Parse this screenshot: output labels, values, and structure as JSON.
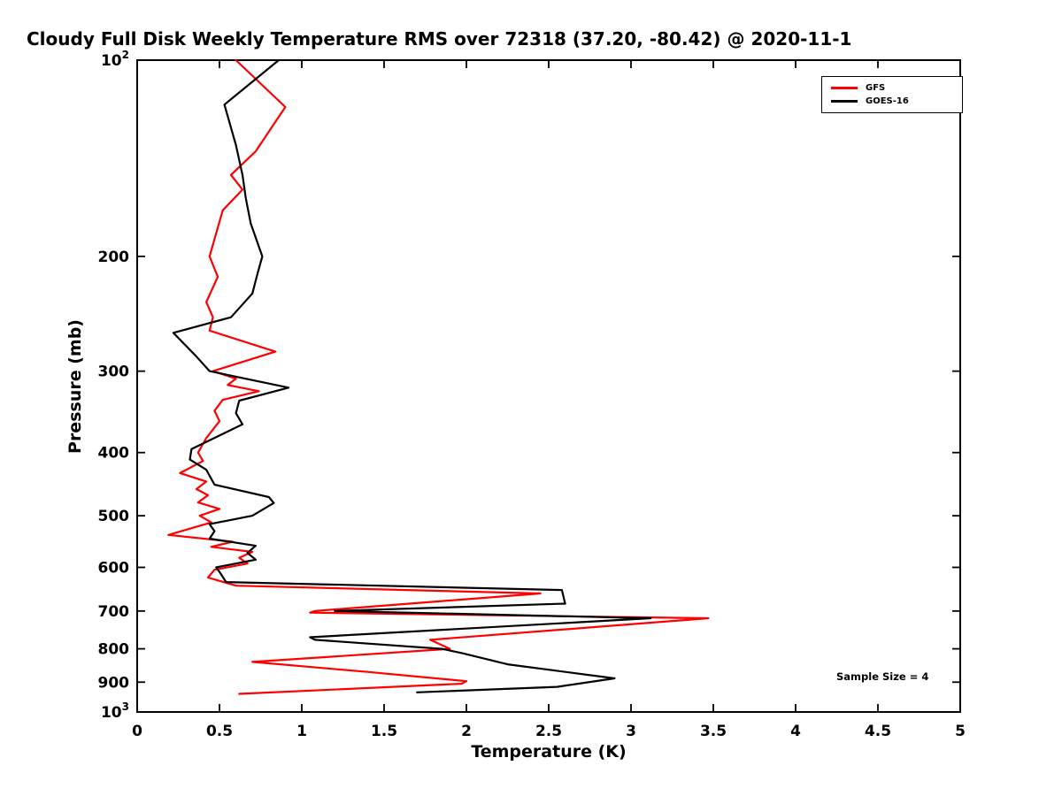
{
  "title": "Cloudy Full Disk Weekly Temperature RMS over 72318 (37.20, -80.42) @ 2020-11-1",
  "annotations": {
    "sample_size": "Sample Size = 4"
  },
  "chart_data": {
    "type": "line",
    "title": "Cloudy Full Disk Weekly Temperature RMS over 72318 (37.20, -80.42) @ 2020-11-1",
    "xlabel": "Temperature (K)",
    "ylabel": "Pressure (mb)",
    "xlim": [
      0,
      5
    ],
    "x_ticks": [
      {
        "value": 0,
        "label": "0"
      },
      {
        "value": 0.5,
        "label": "0.5"
      },
      {
        "value": 1,
        "label": "1"
      },
      {
        "value": 1.5,
        "label": "1.5"
      },
      {
        "value": 2,
        "label": "2"
      },
      {
        "value": 2.5,
        "label": "2.5"
      },
      {
        "value": 3,
        "label": "3"
      },
      {
        "value": 3.5,
        "label": "3.5"
      },
      {
        "value": 4,
        "label": "4"
      },
      {
        "value": 4.5,
        "label": "4.5"
      },
      {
        "value": 5,
        "label": "5"
      }
    ],
    "yscale": "log",
    "ylim": [
      100,
      1000
    ],
    "y_axis_direction": "pressure increases downward",
    "y_ticks": [
      {
        "value": 100,
        "label": "10^2"
      },
      {
        "value": 200,
        "label": "200"
      },
      {
        "value": 300,
        "label": "300"
      },
      {
        "value": 400,
        "label": "400"
      },
      {
        "value": 500,
        "label": "500"
      },
      {
        "value": 600,
        "label": "600"
      },
      {
        "value": 700,
        "label": "700"
      },
      {
        "value": 800,
        "label": "800"
      },
      {
        "value": 900,
        "label": "900"
      },
      {
        "value": 1000,
        "label": "10^3"
      }
    ],
    "grid": false,
    "legend_position": "top-right",
    "point_format": "[pressure_mb, rms_K]",
    "series": [
      {
        "name": "GFS",
        "color": "#ff0000",
        "points": [
          [
            100,
            0.6
          ],
          [
            118,
            0.9
          ],
          [
            138,
            0.72
          ],
          [
            150,
            0.57
          ],
          [
            158,
            0.64
          ],
          [
            170,
            0.52
          ],
          [
            200,
            0.44
          ],
          [
            215,
            0.49
          ],
          [
            235,
            0.42
          ],
          [
            248,
            0.46
          ],
          [
            260,
            0.44
          ],
          [
            280,
            0.84
          ],
          [
            300,
            0.46
          ],
          [
            308,
            0.6
          ],
          [
            315,
            0.55
          ],
          [
            322,
            0.74
          ],
          [
            332,
            0.52
          ],
          [
            345,
            0.47
          ],
          [
            358,
            0.5
          ],
          [
            380,
            0.42
          ],
          [
            400,
            0.37
          ],
          [
            412,
            0.4
          ],
          [
            430,
            0.26
          ],
          [
            443,
            0.42
          ],
          [
            455,
            0.36
          ],
          [
            465,
            0.43
          ],
          [
            477,
            0.37
          ],
          [
            488,
            0.5
          ],
          [
            500,
            0.38
          ],
          [
            512,
            0.45
          ],
          [
            535,
            0.19
          ],
          [
            548,
            0.58
          ],
          [
            558,
            0.45
          ],
          [
            568,
            0.7
          ],
          [
            580,
            0.62
          ],
          [
            592,
            0.67
          ],
          [
            605,
            0.47
          ],
          [
            622,
            0.43
          ],
          [
            640,
            0.6
          ],
          [
            658,
            2.45
          ],
          [
            700,
            1.08
          ],
          [
            704,
            1.05
          ],
          [
            718,
            3.47
          ],
          [
            775,
            1.78
          ],
          [
            800,
            1.9
          ],
          [
            838,
            0.7
          ],
          [
            868,
            1.4
          ],
          [
            897,
            2.0
          ],
          [
            905,
            1.97
          ],
          [
            938,
            0.62
          ]
        ]
      },
      {
        "name": "GOES-16",
        "color": "#000000",
        "points": [
          [
            100,
            0.86
          ],
          [
            117,
            0.53
          ],
          [
            135,
            0.6
          ],
          [
            150,
            0.64
          ],
          [
            163,
            0.66
          ],
          [
            178,
            0.69
          ],
          [
            200,
            0.76
          ],
          [
            213,
            0.73
          ],
          [
            228,
            0.7
          ],
          [
            248,
            0.57
          ],
          [
            262,
            0.22
          ],
          [
            285,
            0.36
          ],
          [
            300,
            0.44
          ],
          [
            318,
            0.92
          ],
          [
            333,
            0.62
          ],
          [
            348,
            0.6
          ],
          [
            362,
            0.64
          ],
          [
            395,
            0.33
          ],
          [
            410,
            0.32
          ],
          [
            425,
            0.42
          ],
          [
            448,
            0.47
          ],
          [
            468,
            0.8
          ],
          [
            478,
            0.83
          ],
          [
            500,
            0.7
          ],
          [
            515,
            0.44
          ],
          [
            528,
            0.47
          ],
          [
            542,
            0.44
          ],
          [
            556,
            0.72
          ],
          [
            570,
            0.67
          ],
          [
            584,
            0.72
          ],
          [
            600,
            0.48
          ],
          [
            615,
            0.51
          ],
          [
            632,
            0.54
          ],
          [
            650,
            2.58
          ],
          [
            682,
            2.6
          ],
          [
            700,
            1.2
          ],
          [
            718,
            3.12
          ],
          [
            768,
            1.05
          ],
          [
            775,
            1.08
          ],
          [
            800,
            1.85
          ],
          [
            812,
            1.97
          ],
          [
            845,
            2.25
          ],
          [
            888,
            2.9
          ],
          [
            915,
            2.55
          ],
          [
            933,
            1.7
          ]
        ]
      }
    ]
  }
}
